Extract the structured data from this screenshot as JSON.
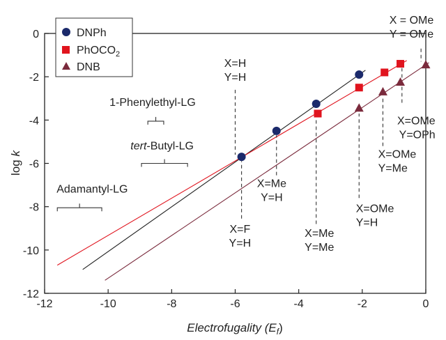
{
  "chart_data": {
    "type": "scatter",
    "xlabel_main": "Electrofugality (",
    "xlabel_var": "E",
    "xlabel_sub": "f",
    "xlabel_close": ")",
    "ylabel_main": "log ",
    "ylabel_var": "k",
    "xlim": [
      -12,
      0
    ],
    "ylim": [
      -12,
      0
    ],
    "x_ticks": [
      -12,
      -10,
      -8,
      -6,
      -4,
      -2,
      0
    ],
    "y_ticks": [
      0,
      -2,
      -4,
      -6,
      -8,
      -10,
      -12
    ],
    "grid": false,
    "legend_position": "top-left",
    "legend": [
      {
        "name_main": "DNPh",
        "name_sub": "",
        "marker": "circle",
        "color": "#1b2a6b"
      },
      {
        "name_main": "PhOCO",
        "name_sub": "2",
        "marker": "square",
        "color": "#e0141e"
      },
      {
        "name_main": "DNB",
        "name_sub": "",
        "marker": "triangle",
        "color": "#7a2a3c"
      }
    ],
    "series": [
      {
        "marker": "circle",
        "color": "#1b2a6b",
        "line_color": "#222222",
        "points": [
          {
            "x": -5.8,
            "y": -5.7
          },
          {
            "x": -4.7,
            "y": -4.5
          },
          {
            "x": -3.45,
            "y": -3.25
          },
          {
            "x": -2.1,
            "y": -1.9
          }
        ],
        "fit": [
          [
            -10.8,
            -10.9
          ],
          [
            -1.9,
            -1.7
          ]
        ]
      },
      {
        "marker": "square",
        "color": "#e0141e",
        "line_color": "#e0141e",
        "points": [
          {
            "x": -3.4,
            "y": -3.7
          },
          {
            "x": -2.1,
            "y": -2.5
          },
          {
            "x": -1.3,
            "y": -1.8
          },
          {
            "x": -0.8,
            "y": -1.4
          }
        ],
        "fit": [
          [
            -11.6,
            -10.7
          ],
          [
            -0.6,
            -1.25
          ]
        ]
      },
      {
        "marker": "triangle",
        "color": "#7a2a3c",
        "line_color": "#7a2a3c",
        "points": [
          {
            "x": -2.1,
            "y": -3.45
          },
          {
            "x": -1.35,
            "y": -2.7
          },
          {
            "x": -0.8,
            "y": -2.25
          },
          {
            "x": 0.0,
            "y": -1.45
          }
        ],
        "fit": [
          [
            -10.1,
            -11.4
          ],
          [
            0.1,
            -1.35
          ]
        ]
      }
    ],
    "annotations": [
      {
        "lines": [
          {
            "main": "X=H"
          },
          {
            "main": "Y=H"
          }
        ],
        "x": -6.0,
        "y": -1.55,
        "anchor": "middle",
        "leader": [
          [
            -6.0,
            -2.6
          ],
          [
            -6.0,
            -5.6
          ]
        ]
      },
      {
        "lines": [
          {
            "main": "X = OMe"
          },
          {
            "main": "Y = OMe"
          }
        ],
        "x": -0.45,
        "y": 0.45,
        "anchor": "middle",
        "leader": [
          [
            -0.15,
            -0.7
          ],
          [
            -0.15,
            -1.3
          ]
        ]
      },
      {
        "lines": [
          {
            "main": "X=OMe"
          },
          {
            "main": "Y=OPh"
          }
        ],
        "x": 0.3,
        "y": -4.2,
        "anchor": "end",
        "leader": [
          [
            -0.75,
            -3.2
          ],
          [
            -0.75,
            -1.6
          ]
        ]
      },
      {
        "lines": [
          {
            "main": "X=OMe"
          },
          {
            "main": "Y=Me"
          }
        ],
        "x": -1.5,
        "y": -5.75,
        "anchor": "start",
        "leader": [
          [
            -1.35,
            -5.2
          ],
          [
            -1.35,
            -2.9
          ]
        ]
      },
      {
        "lines": [
          {
            "main": "X=OMe"
          },
          {
            "main": "Y=H"
          }
        ],
        "x": -2.2,
        "y": -8.25,
        "anchor": "start",
        "leader": [
          [
            -2.1,
            -7.6
          ],
          [
            -2.1,
            -3.7
          ]
        ]
      },
      {
        "lines": [
          {
            "main": "X=Me"
          },
          {
            "main": "Y=Me"
          }
        ],
        "x": -3.35,
        "y": -9.4,
        "anchor": "middle",
        "leader": [
          [
            -3.45,
            -8.8
          ],
          [
            -3.45,
            -3.9
          ]
        ]
      },
      {
        "lines": [
          {
            "main": "X=Me"
          },
          {
            "main": "Y=H"
          }
        ],
        "x": -4.85,
        "y": -7.1,
        "anchor": "middle",
        "leader": [
          [
            -4.7,
            -6.55
          ],
          [
            -4.7,
            -4.7
          ]
        ]
      },
      {
        "lines": [
          {
            "main": "X=F"
          },
          {
            "main": "Y=H"
          }
        ],
        "x": -5.85,
        "y": -9.2,
        "anchor": "middle",
        "leader": [
          [
            -5.8,
            -8.55
          ],
          [
            -5.8,
            -5.9
          ]
        ]
      },
      {
        "lines": [
          {
            "main": "1-Phenylethyl-LG"
          }
        ],
        "x": -8.6,
        "y": -3.35,
        "anchor": "middle",
        "bracket": {
          "x1": -8.75,
          "x2": -8.25,
          "y": -4.05
        }
      },
      {
        "lines": [
          {
            "italic": "tert",
            "main": "-Butyl-LG"
          }
        ],
        "x": -8.3,
        "y": -5.35,
        "anchor": "middle",
        "bracket": {
          "x1": -8.95,
          "x2": -7.5,
          "y": -6.0
        }
      },
      {
        "lines": [
          {
            "main": "Adamantyl-LG"
          }
        ],
        "x": -10.5,
        "y": -7.35,
        "anchor": "middle",
        "bracket": {
          "x1": -11.6,
          "x2": -10.2,
          "y": -8.05
        }
      }
    ]
  }
}
